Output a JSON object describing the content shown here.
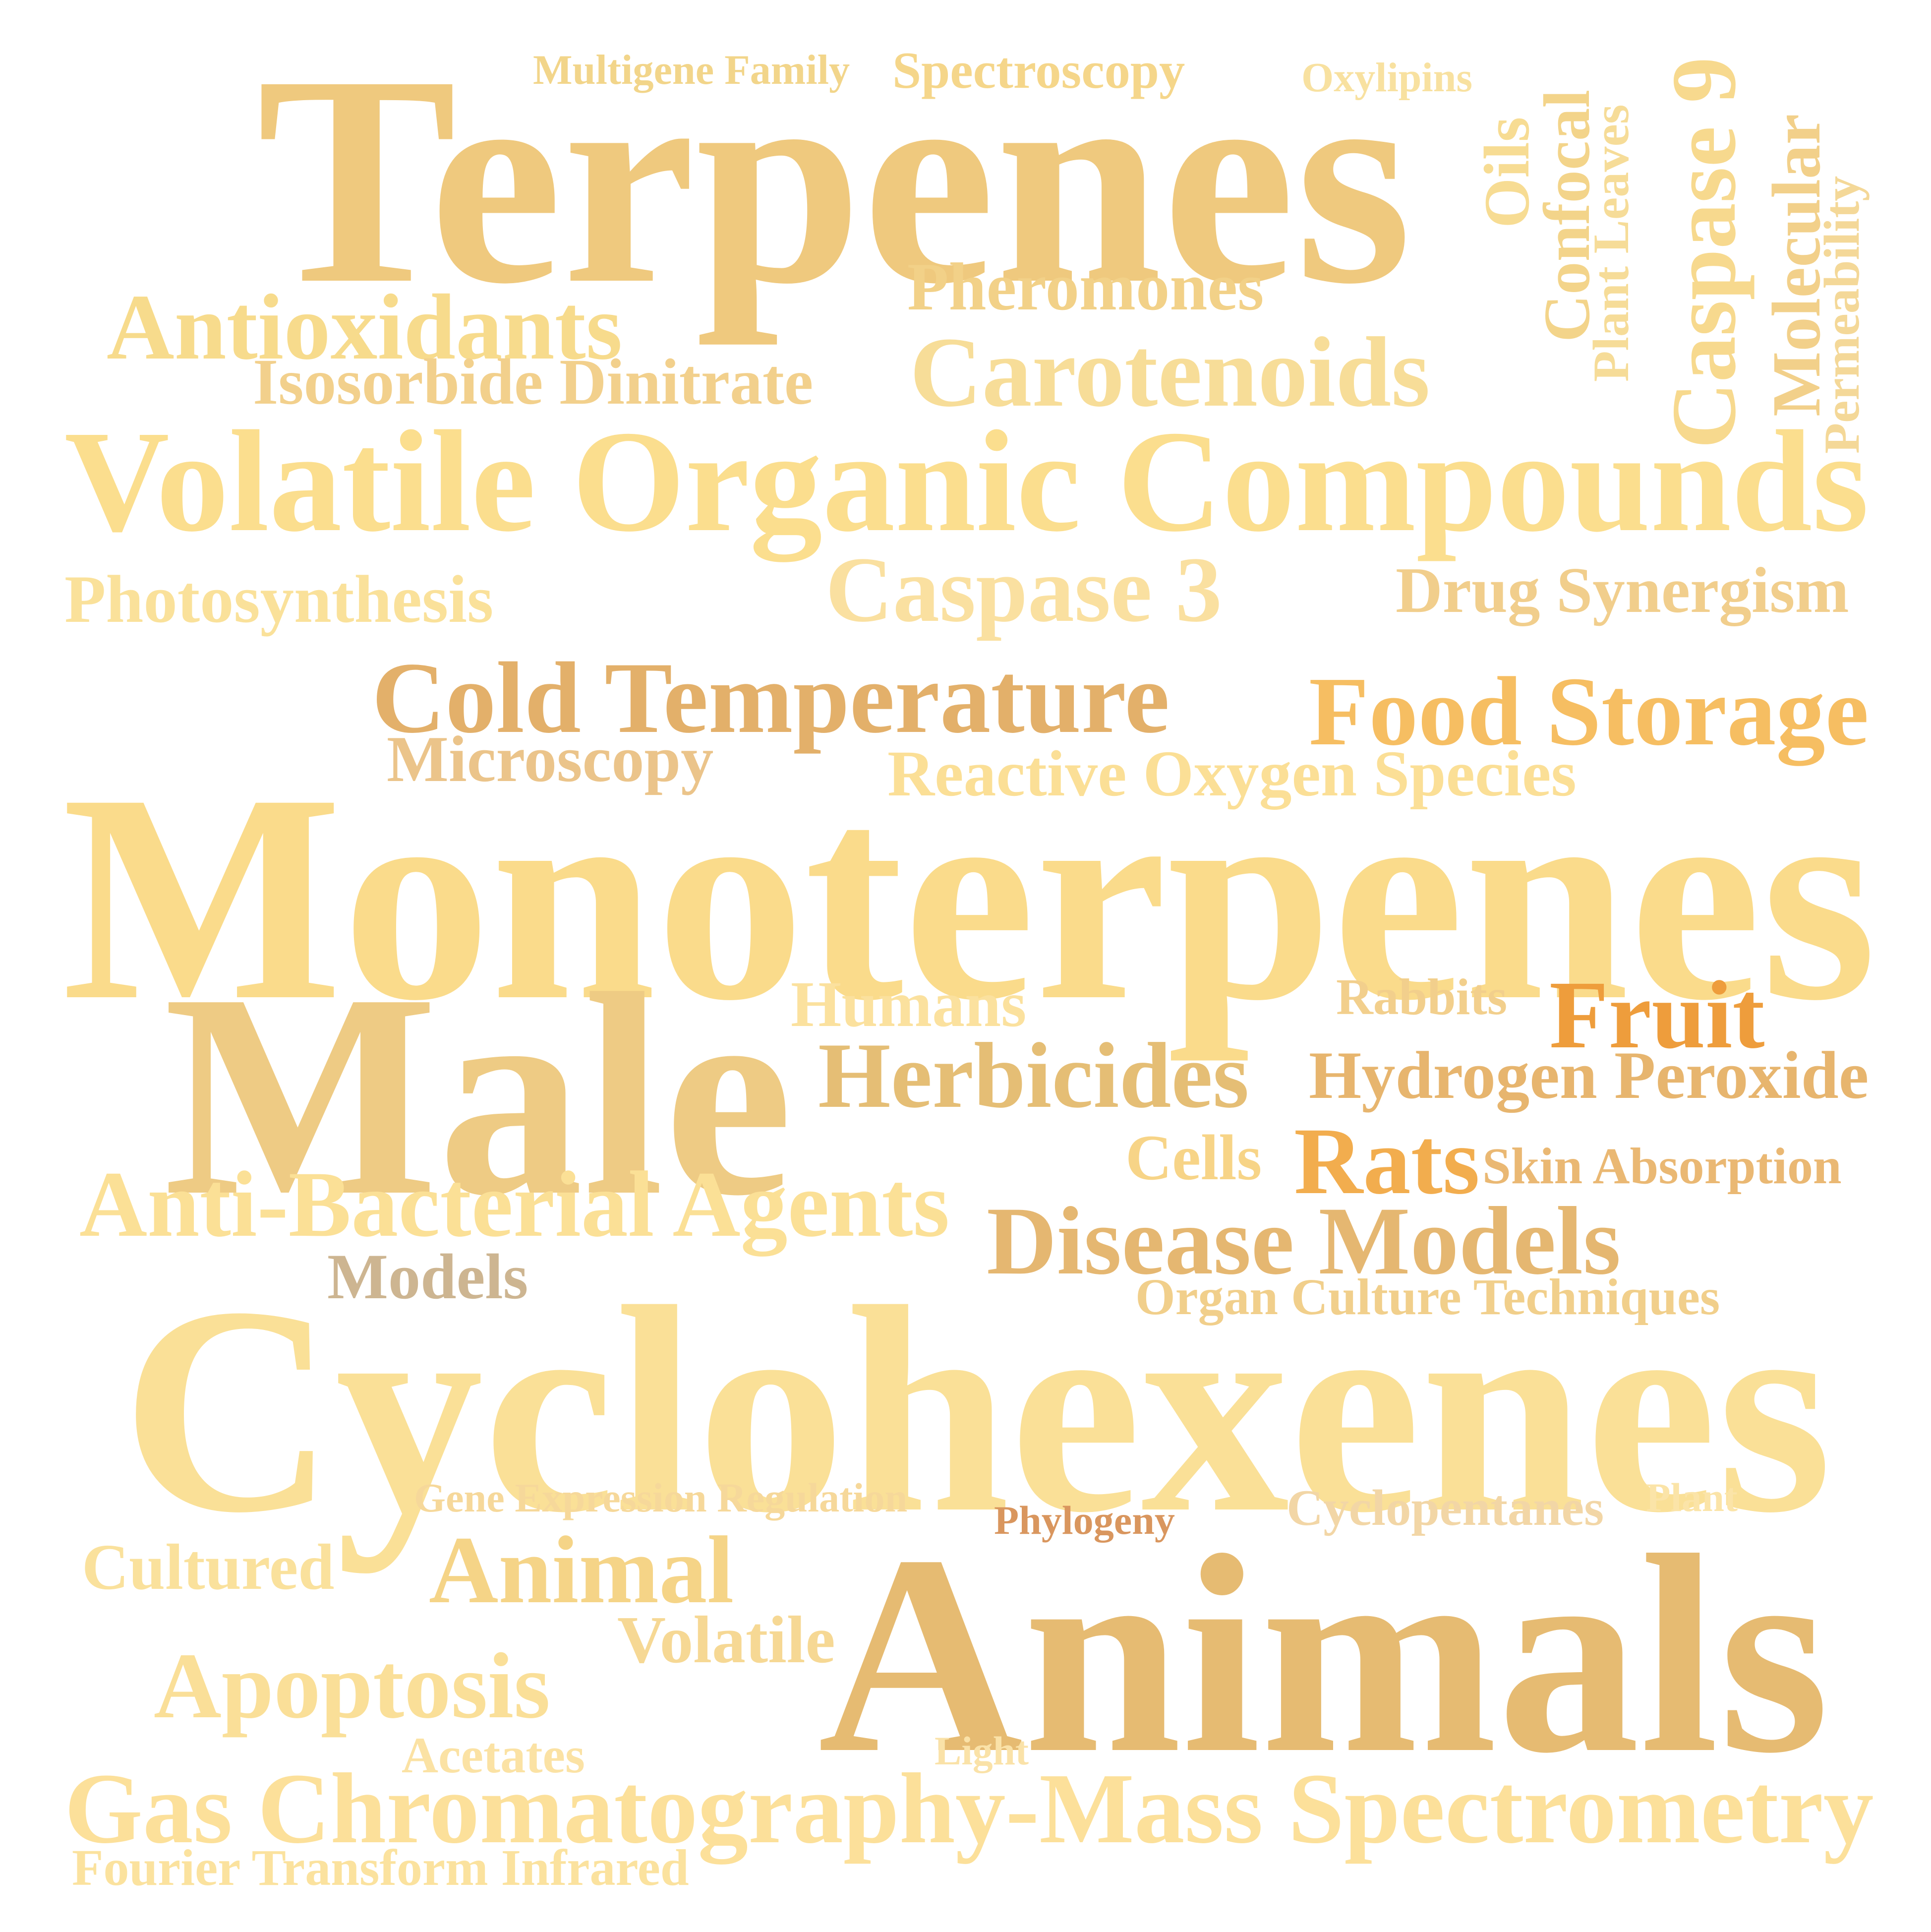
{
  "words": [
    {
      "text": "Terpenes",
      "color": "#EFC97E"
    },
    {
      "text": "Multigene Family",
      "color": "#F2D58A"
    },
    {
      "text": "Spectroscopy",
      "color": "#F5D68A"
    },
    {
      "text": "Oxylipins",
      "color": "#F8E1A0"
    },
    {
      "text": "Oils",
      "color": "#F7DC93"
    },
    {
      "text": "Confocal",
      "color": "#F3D48A"
    },
    {
      "text": "Plant Leaves",
      "color": "#F6DC98"
    },
    {
      "text": "Caspase 9",
      "color": "#F7D98E"
    },
    {
      "text": "Molecular",
      "color": "#F2D08A"
    },
    {
      "text": "Permeability",
      "color": "#F4D898"
    },
    {
      "text": "Pheromones",
      "color": "#F2D188"
    },
    {
      "text": "Antioxidants",
      "color": "#F7DB8C"
    },
    {
      "text": "Isosorbide Dinitrate",
      "color": "#F2D08C"
    },
    {
      "text": "Carotenoids",
      "color": "#F7DD98"
    },
    {
      "text": "Volatile Organic Compounds",
      "color": "#FBDE8E"
    },
    {
      "text": "Photosynthesis",
      "color": "#FAE19A"
    },
    {
      "text": "Caspase 3",
      "color": "#FAE0A0"
    },
    {
      "text": "Drug Synergism",
      "color": "#F1CE8C"
    },
    {
      "text": "Cold Temperature",
      "color": "#E3B06A"
    },
    {
      "text": "Food Storage",
      "color": "#F6BE62"
    },
    {
      "text": "Microscopy",
      "color": "#EBC48A"
    },
    {
      "text": "Reactive Oxygen Species",
      "color": "#FBDF96"
    },
    {
      "text": "Monoterpenes",
      "color": "#FADB8B"
    },
    {
      "text": "Male",
      "color": "#EECB84"
    },
    {
      "text": "Humans",
      "color": "#FBE19E"
    },
    {
      "text": "Rabbits",
      "color": "#F2CF8C"
    },
    {
      "text": "Fruit",
      "color": "#EE9D3C"
    },
    {
      "text": "Herbicides",
      "color": "#E5BE75"
    },
    {
      "text": "Hydrogen Peroxide",
      "color": "#E7B56E"
    },
    {
      "text": "Cells",
      "color": "#F7D487"
    },
    {
      "text": "Rats",
      "color": "#F2AD4E"
    },
    {
      "text": "Skin Absorption",
      "color": "#EAB873"
    },
    {
      "text": "Anti-Bacterial Agents",
      "color": "#FBE096"
    },
    {
      "text": "Disease Models",
      "color": "#E5B771"
    },
    {
      "text": "Models",
      "color": "#CDB591"
    },
    {
      "text": "Organ Culture Techniques",
      "color": "#F1CF8B"
    },
    {
      "text": "Cyclohexenes",
      "color": "#FAE097"
    },
    {
      "text": "Gene Expression Regulation",
      "color": "#F6D89A"
    },
    {
      "text": "Phylogeny",
      "color": "#D9965E"
    },
    {
      "text": "Cyclopentanes",
      "color": "#F2D6A6"
    },
    {
      "text": "Plant",
      "color": "#FBE4A8"
    },
    {
      "text": "Cultured",
      "color": "#FAE19C"
    },
    {
      "text": "Animal",
      "color": "#F5D487"
    },
    {
      "text": "Animals",
      "color": "#E6BB72"
    },
    {
      "text": "Volatile",
      "color": "#F6D894"
    },
    {
      "text": "Apoptosis",
      "color": "#FADF98"
    },
    {
      "text": "Acetates",
      "color": "#FBE2A4"
    },
    {
      "text": "Light",
      "color": "#FAE2A8"
    },
    {
      "text": "Gas Chromatography-Mass Spectrometry",
      "color": "#FCE09A"
    },
    {
      "text": "Fourier Transform Infrared",
      "color": "#FBE29E"
    }
  ]
}
